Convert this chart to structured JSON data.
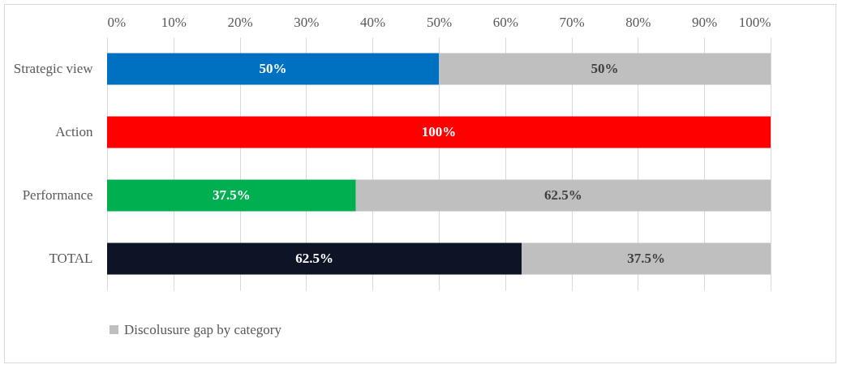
{
  "chart_data": {
    "type": "bar",
    "orientation": "horizontal",
    "stacked": true,
    "categories": [
      "Strategic view",
      "Action",
      "Performance",
      "TOTAL"
    ],
    "series": [
      {
        "colors": [
          "#0070c0",
          "#ff0000",
          "#00b050",
          "#0c1425"
        ],
        "values": [
          50,
          100,
          37.5,
          62.5
        ],
        "value_labels": [
          "50%",
          "100%",
          "37.5%",
          "62.5%"
        ]
      },
      {
        "name": "Discolusure gap by category",
        "color": "#bfbfbf",
        "values": [
          50,
          0,
          62.5,
          37.5
        ],
        "value_labels": [
          "50%",
          null,
          "62.5%",
          "37.5%"
        ]
      }
    ],
    "xlim": [
      0,
      100
    ],
    "xticks": [
      {
        "value": 0,
        "label": "0%"
      },
      {
        "value": 10,
        "label": "10%"
      },
      {
        "value": 20,
        "label": "20%"
      },
      {
        "value": 30,
        "label": "30%"
      },
      {
        "value": 40,
        "label": "40%"
      },
      {
        "value": 50,
        "label": "50%"
      },
      {
        "value": 60,
        "label": "60%"
      },
      {
        "value": 70,
        "label": "70%"
      },
      {
        "value": 80,
        "label": "80%"
      },
      {
        "value": 90,
        "label": "90%"
      },
      {
        "value": 100,
        "label": "100%"
      }
    ],
    "grid": "x",
    "legend": "bottom"
  }
}
